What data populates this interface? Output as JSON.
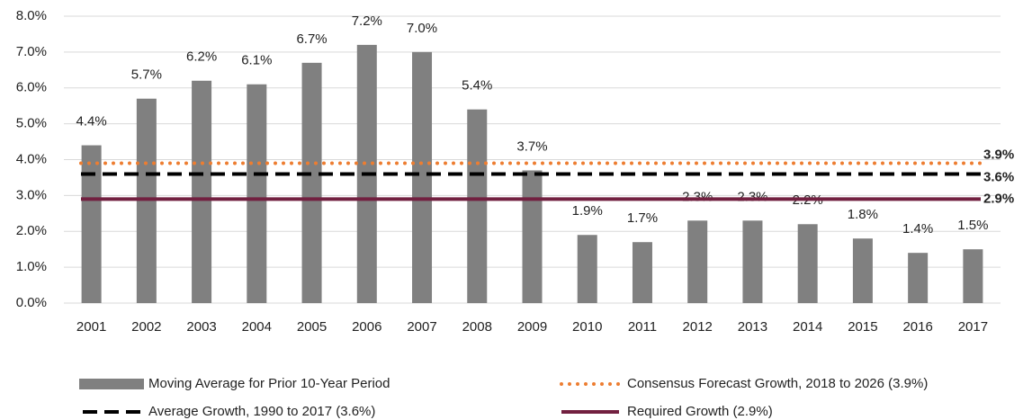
{
  "chart_data": {
    "type": "bar",
    "categories": [
      "2001",
      "2002",
      "2003",
      "2004",
      "2005",
      "2006",
      "2007",
      "2008",
      "2009",
      "2010",
      "2011",
      "2012",
      "2013",
      "2014",
      "2015",
      "2016",
      "2017"
    ],
    "series": [
      {
        "name": "Moving Average for Prior 10-Year Period",
        "color": "#808080",
        "values": [
          4.4,
          5.7,
          6.2,
          6.1,
          6.7,
          7.2,
          7.0,
          5.4,
          3.7,
          1.9,
          1.7,
          2.3,
          2.3,
          2.2,
          1.8,
          1.4,
          1.5
        ],
        "value_labels": [
          "4.4%",
          "5.7%",
          "6.2%",
          "6.1%",
          "6.7%",
          "7.2%",
          "7.0%",
          "5.4%",
          "3.7%",
          "1.9%",
          "1.7%",
          "2.3%",
          "2.3%",
          "2.2%",
          "1.8%",
          "1.4%",
          "1.5%"
        ]
      }
    ],
    "reference_lines": [
      {
        "name": "Consensus Forecast Growth, 2018 to 2026 (3.9%)",
        "value": 3.9,
        "label": "3.9%",
        "color": "#ED7D31",
        "style": "dotted"
      },
      {
        "name": "Average Growth, 1990 to 2017 (3.6%)",
        "value": 3.6,
        "label": "3.6%",
        "color": "#000000",
        "style": "dashed"
      },
      {
        "name": "Required Growth (2.9%)",
        "value": 2.9,
        "label": "2.9%",
        "color": "#722040",
        "style": "solid"
      }
    ],
    "ylim": [
      0,
      8
    ],
    "yticks": [
      {
        "value": 0,
        "label": "0.0%"
      },
      {
        "value": 1,
        "label": "1.0%"
      },
      {
        "value": 2,
        "label": "2.0%"
      },
      {
        "value": 3,
        "label": "3.0%"
      },
      {
        "value": 4,
        "label": "4.0%"
      },
      {
        "value": 5,
        "label": "5.0%"
      },
      {
        "value": 6,
        "label": "6.0%"
      },
      {
        "value": 7,
        "label": "7.0%"
      },
      {
        "value": 8,
        "label": "8.0%"
      }
    ],
    "grid": true
  }
}
